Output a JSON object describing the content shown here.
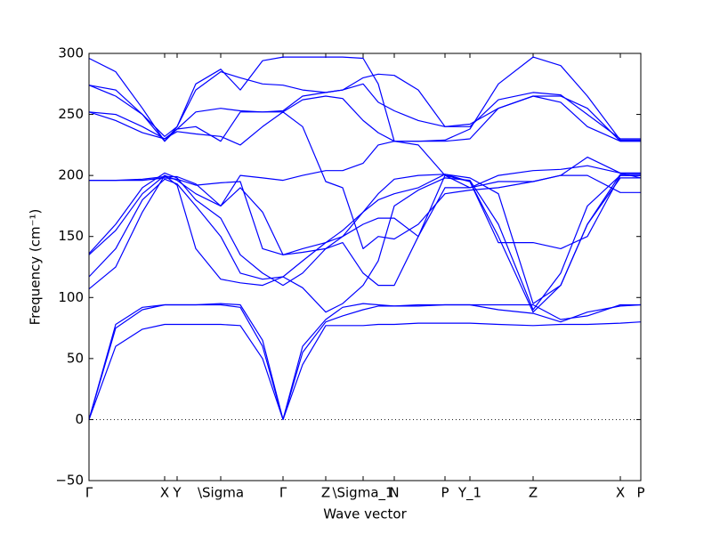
{
  "chart_data": {
    "type": "line",
    "xlabel": "Wave vector",
    "ylabel": "Frequency (cm⁻¹)",
    "color": "#0000ff",
    "zero_line": true,
    "xlim": [
      0,
      6.2
    ],
    "ylim": [
      -50,
      300
    ],
    "yticks": [
      {
        "value": -50,
        "label": "−50"
      },
      0,
      50,
      100,
      150,
      200,
      250,
      300
    ],
    "xticks": [
      {
        "value": 0,
        "label": "Γ"
      },
      {
        "value": 0.85,
        "label": "X"
      },
      {
        "value": 0.99,
        "label": "Y"
      },
      {
        "value": 1.48,
        "label": "\\Sigma"
      },
      {
        "value": 2.18,
        "label": "Γ"
      },
      {
        "value": 2.66,
        "label": "Z"
      },
      {
        "value": 3.08,
        "label": "\\Sigma_1"
      },
      {
        "value": 3.43,
        "label": "N"
      },
      {
        "value": 4.0,
        "label": "P"
      },
      {
        "value": 4.28,
        "label": "Y_1"
      },
      {
        "value": 4.99,
        "label": "Z"
      },
      {
        "value": 5.97,
        "label": "X"
      },
      {
        "value": 6.2,
        "label": "P"
      }
    ],
    "x": [
      0,
      0.3,
      0.6,
      0.85,
      0.99,
      1.2,
      1.48,
      1.7,
      1.95,
      2.18,
      2.4,
      2.66,
      2.85,
      3.08,
      3.25,
      3.43,
      3.7,
      4.0,
      4.28,
      4.6,
      4.99,
      5.3,
      5.6,
      5.97,
      6.2
    ],
    "series": [
      {
        "values": [
          0,
          60,
          74,
          78,
          78,
          78,
          78,
          77,
          50,
          0,
          45,
          77,
          77,
          77,
          78,
          78,
          79,
          79,
          79,
          78,
          77,
          78,
          78,
          79,
          80
        ]
      },
      {
        "values": [
          0,
          75,
          90,
          94,
          94,
          94,
          94,
          92,
          60,
          0,
          55,
          80,
          85,
          90,
          93,
          93,
          93,
          94,
          94,
          94,
          94,
          82,
          85,
          94,
          94
        ]
      },
      {
        "values": [
          0,
          78,
          92,
          94,
          94,
          94,
          95,
          94,
          65,
          0,
          60,
          82,
          92,
          95,
          94,
          93,
          94,
          94,
          94,
          90,
          87,
          80,
          88,
          93,
          94
        ]
      },
      {
        "values": [
          107,
          125,
          170,
          200,
          192,
          140,
          115,
          112,
          110,
          117,
          130,
          145,
          150,
          170,
          185,
          197,
          200,
          201,
          198,
          185,
          95,
          110,
          160,
          198,
          198
        ]
      },
      {
        "values": [
          117,
          140,
          180,
          197,
          193,
          175,
          150,
          120,
          115,
          117,
          108,
          88,
          95,
          110,
          130,
          175,
          188,
          198,
          196,
          160,
          90,
          120,
          175,
          200,
          200
        ]
      },
      {
        "values": [
          135,
          155,
          185,
          200,
          196,
          185,
          175,
          190,
          170,
          135,
          140,
          145,
          155,
          170,
          180,
          185,
          190,
          201,
          195,
          150,
          88,
          110,
          160,
          201,
          201
        ]
      },
      {
        "values": [
          136,
          160,
          190,
          202,
          198,
          180,
          165,
          135,
          120,
          110,
          120,
          140,
          145,
          120,
          110,
          110,
          150,
          200,
          195,
          145,
          145,
          140,
          150,
          200,
          200
        ]
      },
      {
        "values": [
          196,
          196,
          197,
          199,
          199,
          193,
          175,
          200,
          198,
          196,
          200,
          204,
          204,
          210,
          225,
          228,
          225,
          200,
          190,
          195,
          195,
          200,
          215,
          202,
          202
        ]
      },
      {
        "values": [
          196,
          196,
          196,
          198,
          197,
          192,
          194,
          195,
          140,
          135,
          137,
          140,
          150,
          160,
          165,
          165,
          150,
          190,
          190,
          200,
          204,
          205,
          208,
          202,
          198
        ]
      },
      {
        "values": [
          252,
          250,
          240,
          230,
          236,
          234,
          232,
          225,
          240,
          252,
          240,
          195,
          190,
          140,
          150,
          148,
          160,
          185,
          188,
          190,
          195,
          200,
          200,
          186,
          186
        ]
      },
      {
        "values": [
          252,
          245,
          235,
          230,
          238,
          240,
          228,
          252,
          252,
          252,
          262,
          265,
          263,
          245,
          235,
          228,
          228,
          228,
          230,
          255,
          265,
          260,
          240,
          228,
          228
        ]
      },
      {
        "values": [
          274,
          270,
          250,
          228,
          238,
          252,
          255,
          253,
          252,
          253,
          265,
          268,
          270,
          275,
          260,
          253,
          245,
          240,
          242,
          255,
          265,
          265,
          255,
          228,
          228
        ]
      },
      {
        "values": [
          274,
          265,
          250,
          232,
          240,
          270,
          285,
          280,
          275,
          274,
          270,
          268,
          270,
          280,
          283,
          282,
          270,
          240,
          240,
          262,
          268,
          266,
          250,
          230,
          230
        ]
      },
      {
        "values": [
          296,
          285,
          255,
          228,
          240,
          275,
          287,
          270,
          294,
          297,
          297,
          297,
          297,
          296,
          275,
          228,
          228,
          229,
          238,
          275,
          297,
          290,
          265,
          229,
          229
        ]
      }
    ]
  }
}
